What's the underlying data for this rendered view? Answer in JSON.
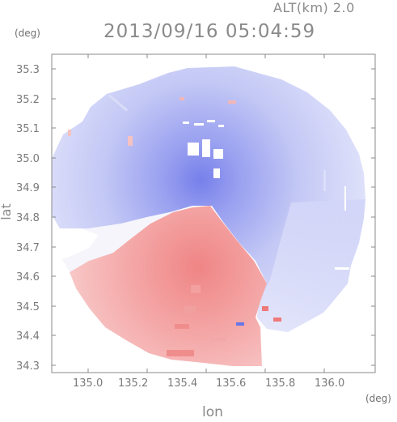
{
  "header": {
    "alt_label": "ALT(km) 2.0",
    "timestamp": "2013/09/16 05:04:59"
  },
  "axes": {
    "y_unit": "(deg)",
    "x_unit": "(deg)",
    "y_label": "lat",
    "x_label": "lon",
    "y_ticks": [
      "35.3",
      "35.2",
      "35.1",
      "35.0",
      "34.9",
      "34.8",
      "34.7",
      "34.6",
      "34.5",
      "34.4",
      "34.3"
    ],
    "x_ticks": [
      "135.0",
      "135.2",
      "135.4",
      "135.6",
      "135.8",
      "136.0"
    ]
  },
  "colors": {
    "approaching": "#8f97ee",
    "receding": "#f28d8d",
    "neutral": "#f4f4f8",
    "frame": "#8a8a8a"
  }
}
